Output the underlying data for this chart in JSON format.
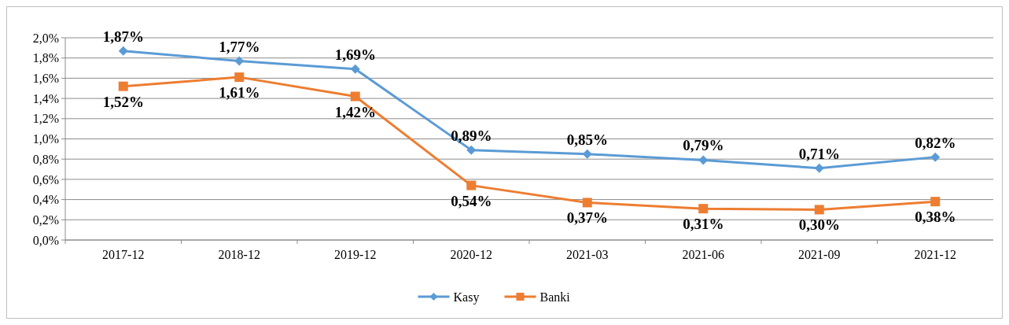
{
  "chart_data": {
    "type": "line",
    "categories": [
      "2017-12",
      "2018-12",
      "2019-12",
      "2020-12",
      "2021-03",
      "2021-06",
      "2021-09",
      "2021-12"
    ],
    "series": [
      {
        "name": "Kasy",
        "color": "#5b9bd5",
        "marker": "diamond",
        "values": [
          1.87,
          1.77,
          1.69,
          0.89,
          0.85,
          0.79,
          0.71,
          0.82
        ],
        "value_labels": [
          "1,87%",
          "1,77%",
          "1,69%",
          "0,89%",
          "0,85%",
          "0,79%",
          "0,71%",
          "0,82%"
        ]
      },
      {
        "name": "Banki",
        "color": "#ed7d31",
        "marker": "square",
        "values": [
          1.52,
          1.61,
          1.42,
          0.54,
          0.37,
          0.31,
          0.3,
          0.38
        ],
        "value_labels": [
          "1,52%",
          "1,61%",
          "1,42%",
          "0,54%",
          "0,37%",
          "0,31%",
          "0,30%",
          "0,38%"
        ]
      }
    ],
    "ylim": [
      0,
      2
    ],
    "yticks": [
      {
        "value": 0,
        "label": "0,0%"
      },
      {
        "value": 0.2,
        "label": "0,2%"
      },
      {
        "value": 0.4,
        "label": "0,4%"
      },
      {
        "value": 0.6,
        "label": "0,6%"
      },
      {
        "value": 0.8,
        "label": "0,8%"
      },
      {
        "value": 1,
        "label": "1,0%"
      },
      {
        "value": 1.2,
        "label": "1,2%"
      },
      {
        "value": 1.4,
        "label": "1,4%"
      },
      {
        "value": 1.6,
        "label": "1,6%"
      },
      {
        "value": 1.8,
        "label": "1,8%"
      },
      {
        "value": 2,
        "label": "2,0%"
      }
    ],
    "grid": "y",
    "legend": "bottom",
    "line_style": "solid"
  }
}
